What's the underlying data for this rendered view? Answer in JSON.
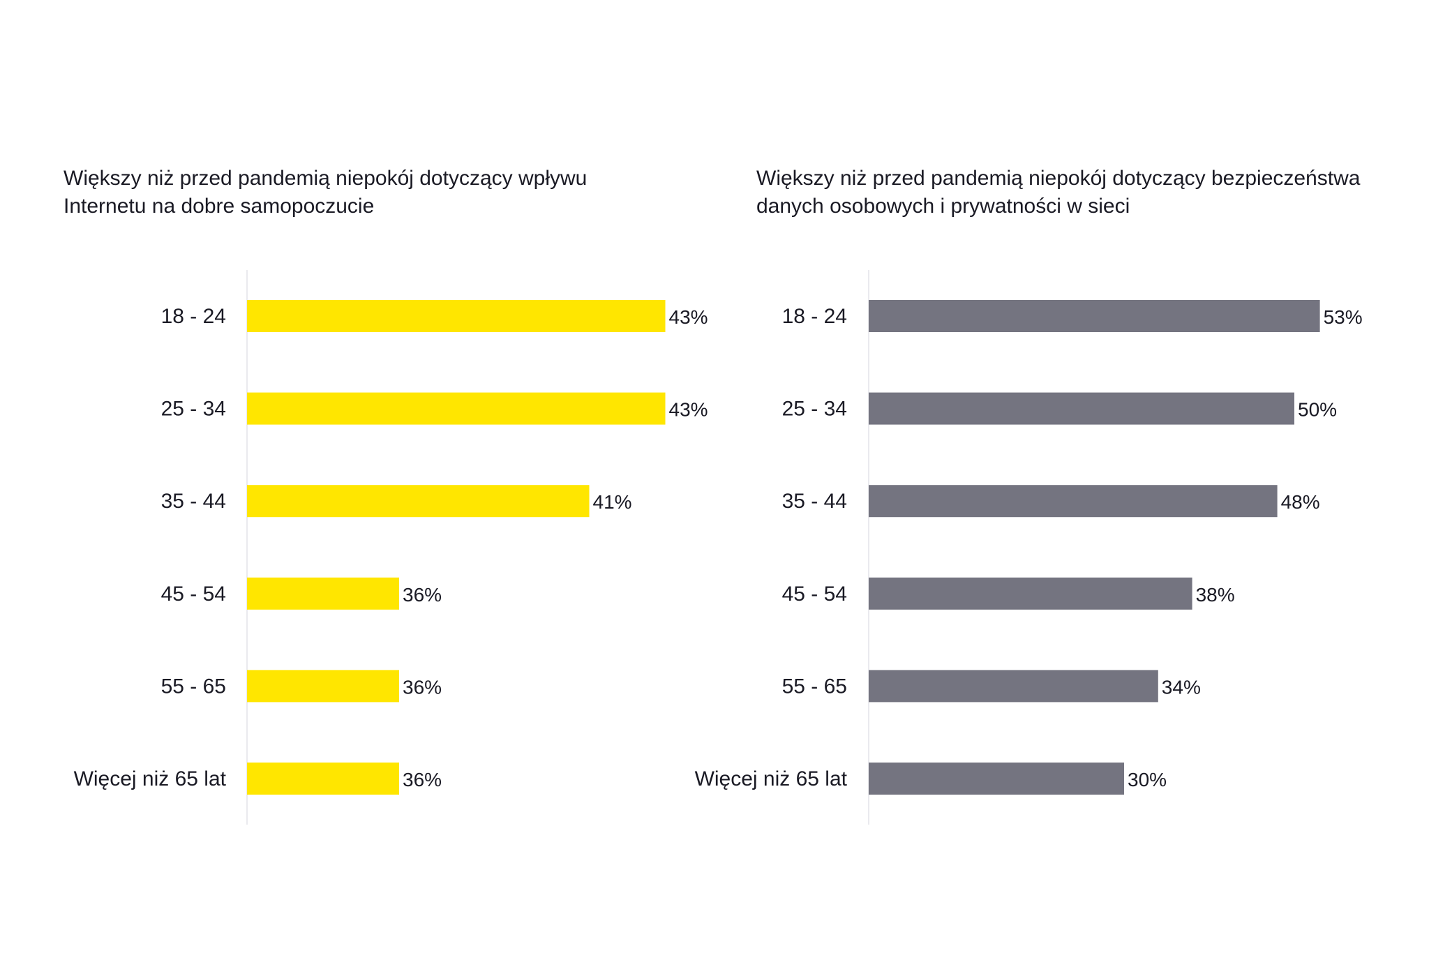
{
  "chart_data": [
    {
      "type": "bar",
      "orientation": "horizontal",
      "title_lines": [
        "Większy niż przed pandemią niepokój dotyczący wpływu",
        "Internetu na dobre samopoczucie"
      ],
      "categories": [
        "18 - 24",
        "25 - 34",
        "35 - 44",
        "45 - 54",
        "55 - 65",
        "Więcej niż 65 lat"
      ],
      "values": [
        43,
        43,
        41,
        36,
        36,
        36
      ],
      "value_labels": [
        "43%",
        "43%",
        "41%",
        "36%",
        "36%",
        "36%"
      ],
      "xlim": [
        32,
        44
      ],
      "color": "#FFE600",
      "grid": false
    },
    {
      "type": "bar",
      "orientation": "horizontal",
      "title_lines": [
        "Większy niż przed pandemią niepokój dotyczący bezpieczeństwa",
        "danych osobowych i prywatności w sieci"
      ],
      "categories": [
        "18 - 24",
        "25 - 34",
        "35 - 44",
        "45 - 54",
        "55 - 65",
        "Więcej niż 65 lat"
      ],
      "values": [
        53,
        50,
        48,
        38,
        34,
        30
      ],
      "value_labels": [
        "53%",
        "50%",
        "48%",
        "38%",
        "34%",
        "30%"
      ],
      "xlim": [
        0,
        55
      ],
      "color": "#747480",
      "grid": false
    }
  ]
}
